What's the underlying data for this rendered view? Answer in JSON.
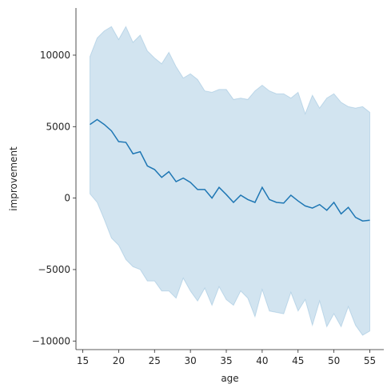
{
  "chart_data": {
    "type": "line",
    "title": "",
    "xlabel": "age",
    "ylabel": "improvement",
    "xlim": [
      14.05,
      56.95
    ],
    "ylim": [
      -10600,
      13300
    ],
    "x_ticks": [
      15,
      20,
      25,
      30,
      35,
      40,
      45,
      50,
      55
    ],
    "y_ticks": [
      -10000,
      -5000,
      0,
      5000,
      10000
    ],
    "x_tick_labels": [
      "15",
      "20",
      "25",
      "30",
      "35",
      "40",
      "45",
      "50",
      "55"
    ],
    "y_tick_labels": [
      "−10000",
      "−5000",
      "0",
      "5000",
      "10000"
    ],
    "grid": false,
    "legend": null,
    "line_color": "#1f77b4",
    "band_color": "#1f77b4",
    "x": [
      16,
      17,
      18,
      19,
      20,
      21,
      22,
      23,
      24,
      25,
      26,
      27,
      28,
      29,
      30,
      31,
      32,
      33,
      34,
      35,
      36,
      37,
      38,
      39,
      40,
      41,
      42,
      43,
      44,
      45,
      46,
      47,
      48,
      49,
      50,
      51,
      52,
      53,
      54,
      55
    ],
    "series": [
      {
        "values": [
          5150,
          5500,
          5150,
          4700,
          3950,
          3900,
          3100,
          3250,
          2250,
          2000,
          1450,
          1850,
          1150,
          1400,
          1100,
          600,
          600,
          0,
          750,
          250,
          -300,
          200,
          -100,
          -300,
          750,
          -100,
          -300,
          -350,
          200,
          -200,
          -550,
          -700,
          -450,
          -850,
          -300,
          -1100,
          -650,
          -1350,
          -1600,
          -1550
        ],
        "ci_upper": [
          9900,
          11200,
          11700,
          12000,
          11100,
          12000,
          10900,
          11400,
          10300,
          9800,
          9400,
          10200,
          9200,
          8400,
          8700,
          8300,
          7500,
          7400,
          7600,
          7600,
          6900,
          7000,
          6900,
          7500,
          7900,
          7500,
          7300,
          7300,
          7000,
          7400,
          5900,
          7200,
          6300,
          7000,
          7300,
          6700,
          6400,
          6300,
          6400,
          6000
        ],
        "ci_lower": [
          300,
          -300,
          -1500,
          -2800,
          -3300,
          -4300,
          -4800,
          -5000,
          -5800,
          -5800,
          -6500,
          -6500,
          -7000,
          -5600,
          -6500,
          -7200,
          -6300,
          -7500,
          -6200,
          -7100,
          -7500,
          -6500,
          -7000,
          -8300,
          -6400,
          -7900,
          -8000,
          -8100,
          -6600,
          -7900,
          -7100,
          -8900,
          -7200,
          -9000,
          -8100,
          -9000,
          -7600,
          -8900,
          -9600,
          -9300
        ]
      }
    ]
  }
}
